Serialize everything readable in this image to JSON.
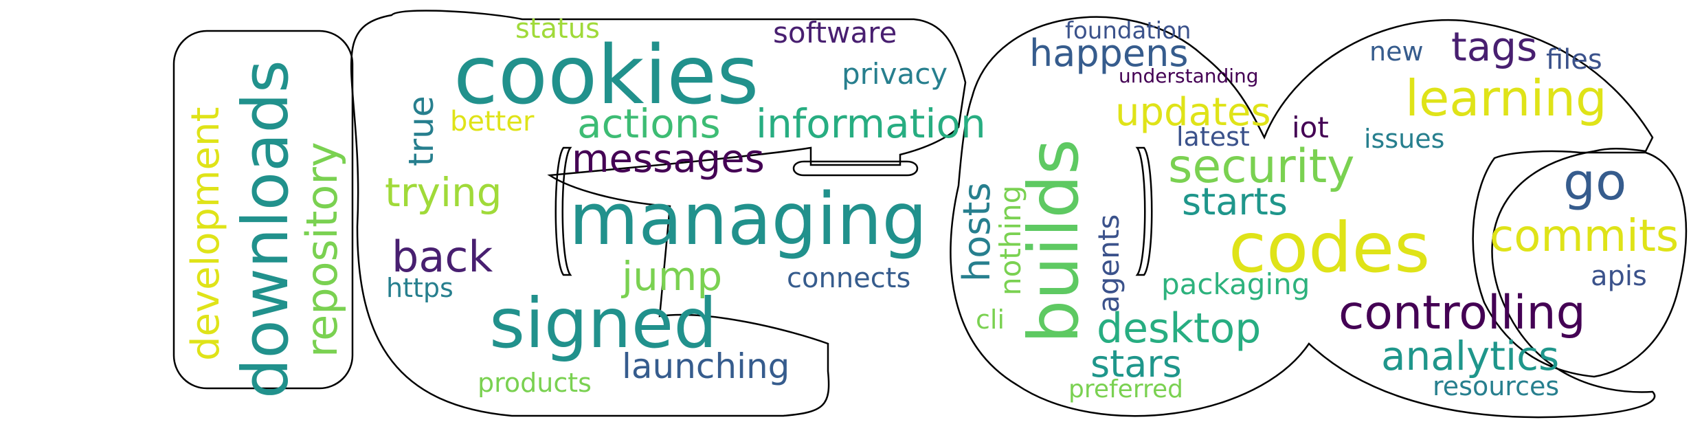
{
  "colors": {
    "background": "#ffffff",
    "outline": "#000000",
    "palette": [
      "#440154",
      "#3b528b",
      "#21918c",
      "#5ec962",
      "#fde725"
    ]
  },
  "words": [
    {
      "id": "cookies",
      "text": "cookies",
      "color": "#21918c"
    },
    {
      "id": "managing",
      "text": "managing",
      "color": "#21918c"
    },
    {
      "id": "signed",
      "text": "signed",
      "color": "#21918c"
    },
    {
      "id": "downloads",
      "text": "downloads",
      "color": "#21918c"
    },
    {
      "id": "builds",
      "text": "builds",
      "color": "#5ec962"
    },
    {
      "id": "codes",
      "text": "codes",
      "color": "#dfe318"
    },
    {
      "id": "information",
      "text": "information",
      "color": "#27ad81"
    },
    {
      "id": "actions",
      "text": "actions",
      "color": "#3dbc74"
    },
    {
      "id": "messages",
      "text": "messages",
      "color": "#440154"
    },
    {
      "id": "controlling",
      "text": "controlling",
      "color": "#440154"
    },
    {
      "id": "learning",
      "text": "learning",
      "color": "#dfe318"
    },
    {
      "id": "security",
      "text": "security",
      "color": "#7ad151"
    },
    {
      "id": "commits",
      "text": "commits",
      "color": "#dfe318"
    },
    {
      "id": "repository",
      "text": "repository",
      "color": "#7ad151"
    },
    {
      "id": "development",
      "text": "development",
      "color": "#dfe318"
    },
    {
      "id": "desktop",
      "text": "desktop",
      "color": "#27ad81"
    },
    {
      "id": "analytics",
      "text": "analytics",
      "color": "#1f968b"
    },
    {
      "id": "updates",
      "text": "updates",
      "color": "#dfe318"
    },
    {
      "id": "happens",
      "text": "happens",
      "color": "#365c8d"
    },
    {
      "id": "starts",
      "text": "starts",
      "color": "#1f968b"
    },
    {
      "id": "stars",
      "text": "stars",
      "color": "#1f968b"
    },
    {
      "id": "go",
      "text": "go",
      "color": "#365c8d"
    },
    {
      "id": "tags",
      "text": "tags",
      "color": "#481f70"
    },
    {
      "id": "back",
      "text": "back",
      "color": "#481f70"
    },
    {
      "id": "trying",
      "text": "trying",
      "color": "#a0da39"
    },
    {
      "id": "jump",
      "text": "jump",
      "color": "#7ad151"
    },
    {
      "id": "launching",
      "text": "launching",
      "color": "#365c8d"
    },
    {
      "id": "hosts",
      "text": "hosts",
      "color": "#277f8e"
    },
    {
      "id": "nothing",
      "text": "nothing",
      "color": "#7ad151"
    },
    {
      "id": "agents",
      "text": "agents",
      "color": "#3b528b"
    },
    {
      "id": "true",
      "text": "true",
      "color": "#277f8e"
    },
    {
      "id": "privacy",
      "text": "privacy",
      "color": "#277f8e"
    },
    {
      "id": "software",
      "text": "software",
      "color": "#481f70"
    },
    {
      "id": "status",
      "text": "status",
      "color": "#a0da39"
    },
    {
      "id": "better",
      "text": "better",
      "color": "#dfe318"
    },
    {
      "id": "connects",
      "text": "connects",
      "color": "#365c8d"
    },
    {
      "id": "https",
      "text": "https",
      "color": "#277f8e"
    },
    {
      "id": "products",
      "text": "products",
      "color": "#7ad151"
    },
    {
      "id": "foundation",
      "text": "foundation",
      "color": "#3b528b"
    },
    {
      "id": "understanding",
      "text": "understanding",
      "color": "#440154"
    },
    {
      "id": "latest",
      "text": "latest",
      "color": "#3b528b"
    },
    {
      "id": "iot",
      "text": "iot",
      "color": "#440154"
    },
    {
      "id": "new",
      "text": "new",
      "color": "#365c8d"
    },
    {
      "id": "files",
      "text": "files",
      "color": "#3b528b"
    },
    {
      "id": "issues",
      "text": "issues",
      "color": "#277f8e"
    },
    {
      "id": "packaging",
      "text": "packaging",
      "color": "#2db27d"
    },
    {
      "id": "apis",
      "text": "apis",
      "color": "#3b528b"
    },
    {
      "id": "resources",
      "text": "resources",
      "color": "#277f8e"
    },
    {
      "id": "preferred",
      "text": "preferred",
      "color": "#7ad151"
    },
    {
      "id": "cli",
      "text": "cli",
      "color": "#7ad151"
    }
  ]
}
